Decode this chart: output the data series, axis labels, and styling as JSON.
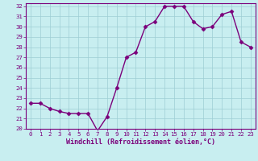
{
  "x": [
    0,
    1,
    2,
    3,
    4,
    5,
    6,
    7,
    8,
    9,
    10,
    11,
    12,
    13,
    14,
    15,
    16,
    17,
    18,
    19,
    20,
    21,
    22,
    23
  ],
  "y": [
    22.5,
    22.5,
    22.0,
    21.7,
    21.5,
    21.5,
    21.5,
    19.8,
    21.2,
    24.0,
    27.0,
    27.5,
    30.0,
    30.5,
    32.0,
    32.0,
    32.0,
    30.5,
    29.8,
    30.0,
    31.2,
    31.5,
    28.5,
    28.0
  ],
  "line_color": "#7b007b",
  "marker": "D",
  "marker_size": 2.5,
  "bg_color": "#c8eef0",
  "grid_color": "#9ecdd4",
  "xlabel": "Windchill (Refroidissement éolien,°C)",
  "ylim": [
    20,
    32
  ],
  "xlim": [
    -0.5,
    23.5
  ],
  "yticks": [
    20,
    21,
    22,
    23,
    24,
    25,
    26,
    27,
    28,
    29,
    30,
    31,
    32
  ],
  "xticks": [
    0,
    1,
    2,
    3,
    4,
    5,
    6,
    7,
    8,
    9,
    10,
    11,
    12,
    13,
    14,
    15,
    16,
    17,
    18,
    19,
    20,
    21,
    22,
    23
  ],
  "tick_color": "#7b007b",
  "tick_fontsize": 5.2,
  "xlabel_fontsize": 6.0,
  "spine_color": "#7b007b",
  "linewidth": 1.0
}
